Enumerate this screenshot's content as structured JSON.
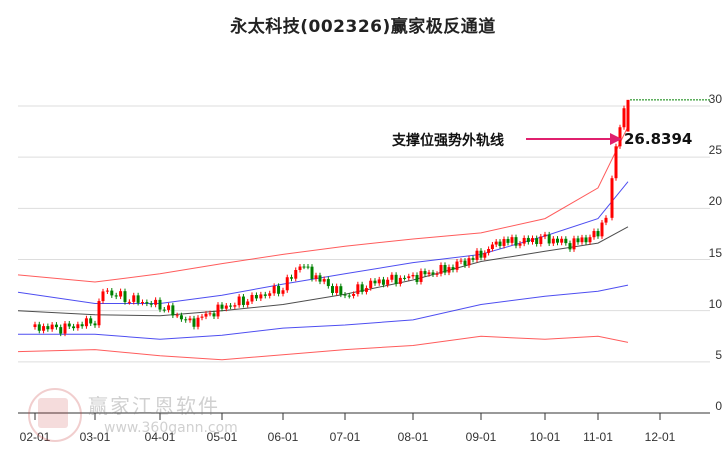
{
  "title": "永太科技(002326)赢家极反通道",
  "annotation": {
    "label": "支撑位强势外轨线",
    "value": "26.8394",
    "arrow_color": "#e0206e"
  },
  "watermark": {
    "text": "赢家江恩软件",
    "url": "www.360gann.com"
  },
  "chart_data": {
    "type": "candlestick",
    "title": "永太科技(002326)赢家极反通道",
    "xlabel": "",
    "ylabel": "",
    "ylim": [
      0,
      30
    ],
    "yticks": [
      0,
      5,
      10,
      15,
      20,
      25,
      30
    ],
    "xticks": [
      "02-01",
      "03-01",
      "04-01",
      "05-01",
      "06-01",
      "07-01",
      "08-01",
      "09-01",
      "10-01",
      "11-01",
      "12-01"
    ],
    "grid": true,
    "colors": {
      "up": "#ff0000",
      "down": "#008000",
      "outer_band": "#ff3333",
      "inner_band": "#2222ee",
      "mid_line": "#222222",
      "dotted_level": "#008000"
    },
    "series": [
      {
        "name": "outer_upper (red)",
        "x": [
          "02-01",
          "03-01",
          "04-01",
          "05-01",
          "06-01",
          "07-01",
          "08-01",
          "09-01",
          "10-01",
          "11-01",
          "11-20"
        ],
        "values": [
          13.5,
          12.8,
          13.6,
          14.6,
          15.5,
          16.3,
          17.0,
          17.6,
          19.0,
          22.0,
          28.0
        ]
      },
      {
        "name": "inner_upper (blue)",
        "x": [
          "02-01",
          "03-01",
          "04-01",
          "05-01",
          "06-01",
          "07-01",
          "08-01",
          "09-01",
          "10-01",
          "11-01",
          "11-20"
        ],
        "values": [
          11.8,
          10.7,
          10.7,
          11.5,
          12.6,
          13.6,
          14.7,
          15.5,
          17.3,
          19.0,
          22.6
        ]
      },
      {
        "name": "mid (black)",
        "x": [
          "02-01",
          "03-01",
          "04-01",
          "05-01",
          "06-01",
          "07-01",
          "08-01",
          "09-01",
          "10-01",
          "11-01",
          "11-20"
        ],
        "values": [
          10.0,
          9.6,
          9.5,
          10.0,
          10.6,
          11.6,
          13.0,
          14.8,
          15.8,
          16.6,
          18.2
        ]
      },
      {
        "name": "inner_lower (blue)",
        "x": [
          "02-01",
          "03-01",
          "04-01",
          "05-01",
          "06-01",
          "07-01",
          "08-01",
          "09-01",
          "10-01",
          "11-01",
          "11-20"
        ],
        "values": [
          7.7,
          7.7,
          7.2,
          7.6,
          8.3,
          8.6,
          9.1,
          10.6,
          11.4,
          11.9,
          12.5
        ]
      },
      {
        "name": "outer_lower (red)",
        "x": [
          "02-01",
          "03-01",
          "04-01",
          "05-01",
          "06-01",
          "07-01",
          "08-01",
          "09-01",
          "10-01",
          "11-01",
          "11-20"
        ],
        "values": [
          6.0,
          6.2,
          5.6,
          5.2,
          5.7,
          6.2,
          6.6,
          7.5,
          7.2,
          7.5,
          6.9
        ]
      },
      {
        "name": "close (candles)",
        "x": [
          "02-01",
          "02-15",
          "03-01",
          "03-05",
          "03-15",
          "04-01",
          "04-15",
          "05-01",
          "05-15",
          "06-01",
          "06-10",
          "06-20",
          "07-01",
          "07-15",
          "08-01",
          "08-15",
          "09-01",
          "09-10",
          "09-20",
          "10-01",
          "10-15",
          "11-01",
          "11-05",
          "11-10",
          "11-15",
          "11-20"
        ],
        "values": [
          8.4,
          8.3,
          9.0,
          12.0,
          11.2,
          10.5,
          8.8,
          10.3,
          11.2,
          12.2,
          14.5,
          13.0,
          11.4,
          12.8,
          13.3,
          14.0,
          15.5,
          16.8,
          16.7,
          17.1,
          16.5,
          17.5,
          19.5,
          23.0,
          28.5,
          30.6
        ]
      }
    ],
    "annotations": [
      {
        "text": "支撑位强势外轨线",
        "value": 26.8394,
        "arrow_to": "last candle"
      },
      {
        "type": "dotted_horizontal",
        "value": 30.6,
        "color": "#008000"
      }
    ]
  }
}
